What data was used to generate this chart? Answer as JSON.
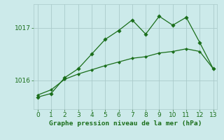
{
  "xlabel": "Graphe pression niveau de la mer (hPa)",
  "bg_color": "#cceaea",
  "grid_color": "#aacaca",
  "line_color": "#1a6e1a",
  "x_min": 0,
  "x_max": 13,
  "y_min": 1015.45,
  "y_max": 1017.45,
  "yticks": [
    1016,
    1017
  ],
  "xticks": [
    0,
    1,
    2,
    3,
    4,
    5,
    6,
    7,
    8,
    9,
    10,
    11,
    12,
    13
  ],
  "line_flat_x": [
    0,
    1,
    2,
    3,
    4,
    5,
    6,
    7,
    8,
    9,
    10,
    11,
    12,
    13
  ],
  "line_flat_y": [
    1015.72,
    1015.82,
    1016.02,
    1016.12,
    1016.2,
    1016.28,
    1016.35,
    1016.42,
    1016.45,
    1016.52,
    1016.55,
    1016.6,
    1016.55,
    1016.22
  ],
  "line_peak_x": [
    0,
    1,
    2,
    3,
    4,
    5,
    6,
    7,
    8,
    9,
    10,
    11,
    12,
    13
  ],
  "line_peak_y": [
    1015.68,
    1015.75,
    1016.05,
    1016.22,
    1016.5,
    1016.78,
    1016.95,
    1017.15,
    1016.88,
    1017.22,
    1017.05,
    1017.2,
    1016.72,
    1016.22
  ]
}
